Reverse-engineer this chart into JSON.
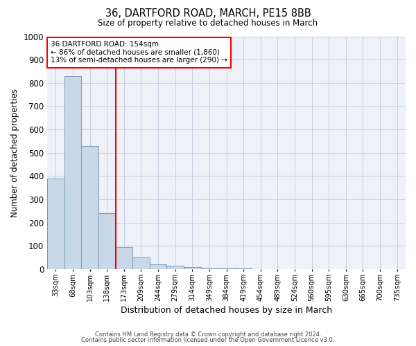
{
  "title1": "36, DARTFORD ROAD, MARCH, PE15 8BB",
  "title2": "Size of property relative to detached houses in March",
  "xlabel": "Distribution of detached houses by size in March",
  "ylabel": "Number of detached properties",
  "categories": [
    "33sqm",
    "68sqm",
    "103sqm",
    "138sqm",
    "173sqm",
    "209sqm",
    "244sqm",
    "279sqm",
    "314sqm",
    "349sqm",
    "384sqm",
    "419sqm",
    "454sqm",
    "489sqm",
    "524sqm",
    "560sqm",
    "595sqm",
    "630sqm",
    "665sqm",
    "700sqm",
    "735sqm"
  ],
  "values": [
    390,
    830,
    530,
    240,
    95,
    50,
    20,
    15,
    10,
    7,
    7,
    7,
    0,
    0,
    0,
    0,
    0,
    0,
    0,
    0,
    0
  ],
  "bar_color": "#c8d8e8",
  "bar_edge_color": "#7a9ab5",
  "bar_edge_width": 0.7,
  "red_line_x": 3.5,
  "annotation_line1": "36 DARTFORD ROAD: 154sqm",
  "annotation_line2": "← 86% of detached houses are smaller (1,860)",
  "annotation_line3": "13% of semi-detached houses are larger (290) →",
  "ylim": [
    0,
    1000
  ],
  "yticks": [
    0,
    100,
    200,
    300,
    400,
    500,
    600,
    700,
    800,
    900,
    1000
  ],
  "footnote1": "Contains HM Land Registry data © Crown copyright and database right 2024.",
  "footnote2": "Contains public sector information licensed under the Open Government Licence v3.0.",
  "bg_color": "#eef2f8",
  "grid_color": "#c5cfe0"
}
